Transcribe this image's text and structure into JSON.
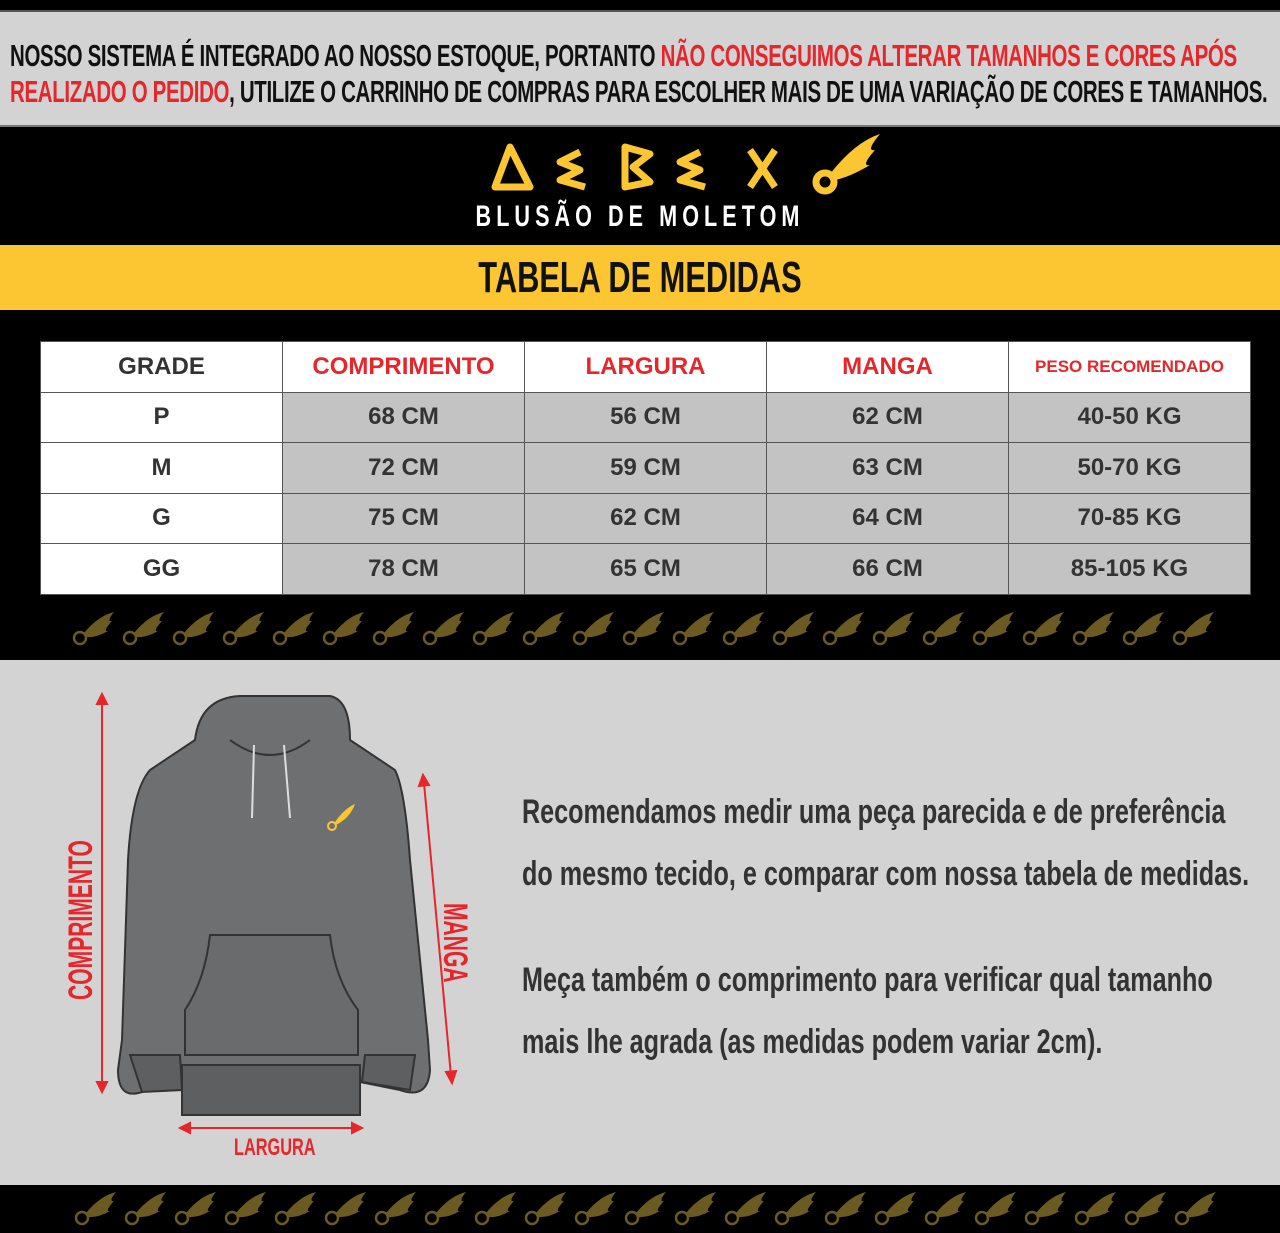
{
  "notice": {
    "line1_black": "NOSSO SISTEMA É INTEGRADO AO NOSSO ESTOQUE, PORTANTO ",
    "line1_red": "NÃO CONSEGUIMOS ALTERAR TAMANHOS E CORES APÓS",
    "line2_red": "REALIZADO O PEDIDO",
    "line2_black": ", UTILIZE O CARRINHO DE COMPRAS PARA ESCOLHER MAIS DE UMA VARIAÇÃO DE CORES E TAMANHOS."
  },
  "brand": {
    "logo_text": "DEBEX",
    "subtitle": "BLUSÃO DE MOLETOM",
    "logo_color": "#fcc632"
  },
  "section_title": "TABELA DE MEDIDAS",
  "table": {
    "headers": [
      "GRADE",
      "COMPRIMENTO",
      "LARGURA",
      "MANGA",
      "PESO RECOMENDADO"
    ],
    "rows": [
      [
        "P",
        "68 CM",
        "56 CM",
        "62 CM",
        "40-50 KG"
      ],
      [
        "M",
        "72 CM",
        "59 CM",
        "63 CM",
        "50-70 KG"
      ],
      [
        "G",
        "75 CM",
        "62 CM",
        "64 CM",
        "70-85 KG"
      ],
      [
        "GG",
        "78 CM",
        "65 CM",
        "66 CM",
        "85-105 KG"
      ]
    ]
  },
  "diagram": {
    "length_label": "COMPRIMENTO",
    "sleeve_label": "MANGA",
    "width_label": "LARGURA"
  },
  "instructions": [
    "Recomendamos medir uma peça parecida e de preferência",
    "do mesmo tecido, e comparar com nossa tabela de medidas.",
    "Meça também o comprimento para verificar qual tamanho",
    "mais lhe agrada (as medidas podem variar 2cm)."
  ],
  "colors": {
    "accent_red": "#e5262b",
    "yellow": "#fcc632",
    "panel_gray": "#d3d3d3"
  }
}
